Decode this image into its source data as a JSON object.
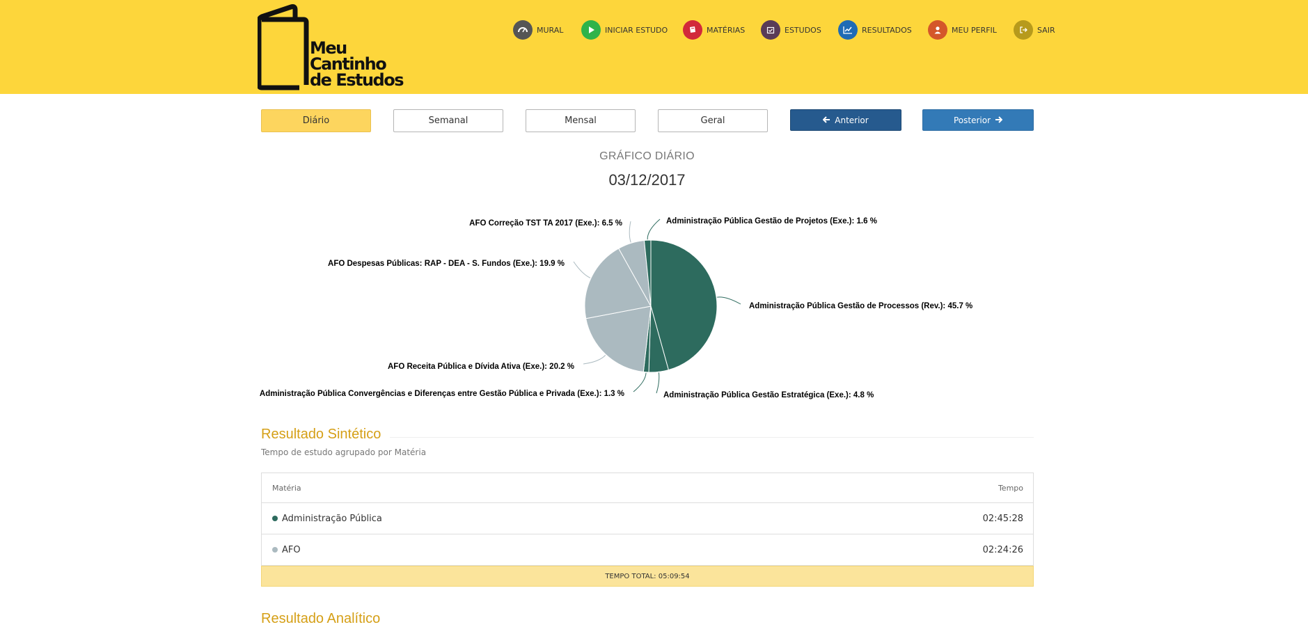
{
  "brand": {
    "line1": "Meu",
    "line2": "Cantinho",
    "line3": "de Estudos"
  },
  "nav": [
    {
      "label": "MURAL",
      "icon": "dashboard-icon",
      "color": "#555555"
    },
    {
      "label": "INICIAR ESTUDO",
      "icon": "play-icon",
      "color": "#2fb34a"
    },
    {
      "label": "MATÉRIAS",
      "icon": "book-icon",
      "color": "#d2293a"
    },
    {
      "label": "ESTUDOS",
      "icon": "calendar-check-icon",
      "color": "#5a3c57"
    },
    {
      "label": "RESULTADOS",
      "icon": "line-chart-icon",
      "color": "#1f6bb5"
    },
    {
      "label": "MEU PERFIL",
      "icon": "user-icon",
      "color": "#d4572a"
    },
    {
      "label": "SAIR",
      "icon": "sign-out-icon",
      "color": "#b79a1c"
    }
  ],
  "periods": {
    "diario": "Diário",
    "semanal": "Semanal",
    "mensal": "Mensal",
    "geral": "Geral",
    "active": "Diário"
  },
  "navigation": {
    "prev": "Anterior",
    "next": "Posterior"
  },
  "chart_header": {
    "subtitle": "GRÁFICO DIÁRIO",
    "date": "03/12/2017"
  },
  "chart_data": {
    "type": "pie",
    "series": [
      {
        "name": "Administração Pública Gestão de Processos (Rev.)",
        "value": 45.7,
        "color": "#2d6b5e"
      },
      {
        "name": "Administração Pública Gestão Estratégica (Exe.)",
        "value": 4.8,
        "color": "#2d6b5e"
      },
      {
        "name": "Administração Pública Convergências e Diferenças entre Gestão Pública e Privada (Exe.)",
        "value": 1.3,
        "color": "#2d6b5e"
      },
      {
        "name": "AFO Receita Pública e Dívida Ativa (Exe.)",
        "value": 20.2,
        "color": "#abbac0"
      },
      {
        "name": "AFO Despesas Públicas: RAP - DEA - S. Fundos (Exe.)",
        "value": 19.9,
        "color": "#abbac0"
      },
      {
        "name": "AFO Correção TST TA 2017 (Exe.)",
        "value": 6.5,
        "color": "#abbac0"
      },
      {
        "name": "Administração Pública Gestão de Projetos (Exe.)",
        "value": 1.6,
        "color": "#2d6b5e"
      }
    ],
    "labels": [
      "Administração Pública Gestão de Processos (Rev.): 45.7 %",
      "Administração Pública Gestão Estratégica (Exe.): 4.8 %",
      "Administração Pública Convergências e Diferenças entre Gestão Pública e Privada (Exe.): 1.3 %",
      "AFO Receita Pública e Dívida Ativa (Exe.): 20.2 %",
      "AFO Despesas Públicas: RAP - DEA - S. Fundos (Exe.): 19.9 %",
      "AFO Correção TST TA 2017 (Exe.): 6.5 %",
      "Administração Pública Gestão de Projetos (Exe.): 1.6 %"
    ]
  },
  "summary": {
    "title": "Resultado Sintético",
    "subtitle": "Tempo de estudo agrupado por Matéria",
    "col_materia": "Matéria",
    "col_tempo": "Tempo",
    "rows": [
      {
        "materia": "Administração Pública",
        "tempo": "02:45:28",
        "color": "#2d6b5e"
      },
      {
        "materia": "AFO",
        "tempo": "02:24:26",
        "color": "#abbac0"
      }
    ],
    "total": "TEMPO TOTAL: 05:09:54"
  },
  "next_section": {
    "title": "Resultado Analítico"
  }
}
